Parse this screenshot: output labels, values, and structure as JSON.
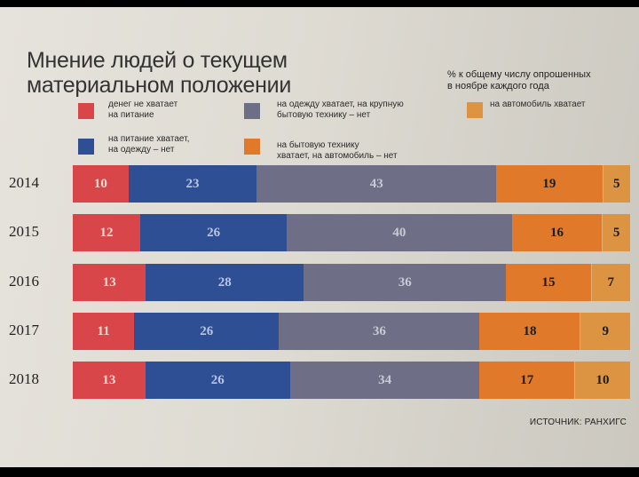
{
  "title_line1": "Мнение людей о текущем",
  "title_line2": "материальном положении",
  "note_line1": "% к общему числу опрошенных",
  "note_line2": "в ноябре каждого года",
  "source": "ИСТОЧНИК: РАНХИГС",
  "legend": [
    {
      "line1": "денег не хватает",
      "line2": "на питание",
      "color": "#d8464a"
    },
    {
      "line1": "на питание хватает,",
      "line2": "на одежду – нет",
      "color": "#2f4f95"
    },
    {
      "line1": "на одежду хватает, на крупную",
      "line2": "бытовую технику – нет",
      "color": "#6e6e86"
    },
    {
      "line1": "на бытовую технику",
      "line2": "хватает, на автомобиль – нет",
      "color": "#e07a2a"
    },
    {
      "line1": "на автомобиль хватает",
      "line2": "",
      "color": "#dc9443"
    }
  ],
  "chart_data": {
    "type": "bar",
    "orientation": "horizontal",
    "stacked": true,
    "categories": [
      "2014",
      "2015",
      "2016",
      "2017",
      "2018"
    ],
    "series": [
      {
        "name": "денег не хватает на питание",
        "color": "#d8464a",
        "values": [
          10,
          12,
          13,
          11,
          13
        ]
      },
      {
        "name": "на питание хватает, на одежду – нет",
        "color": "#2f4f95",
        "values": [
          23,
          26,
          28,
          26,
          26
        ]
      },
      {
        "name": "на одежду хватает, на крупную бытовую технику – нет",
        "color": "#6e6e86",
        "values": [
          43,
          40,
          36,
          36,
          34
        ]
      },
      {
        "name": "на бытовую технику хватает, на автомобиль – нет",
        "color": "#e07a2a",
        "values": [
          19,
          16,
          15,
          18,
          17
        ]
      },
      {
        "name": "на автомобиль хватает",
        "color": "#dc9443",
        "values": [
          5,
          5,
          7,
          9,
          10
        ]
      }
    ],
    "xlim": [
      0,
      100
    ]
  }
}
